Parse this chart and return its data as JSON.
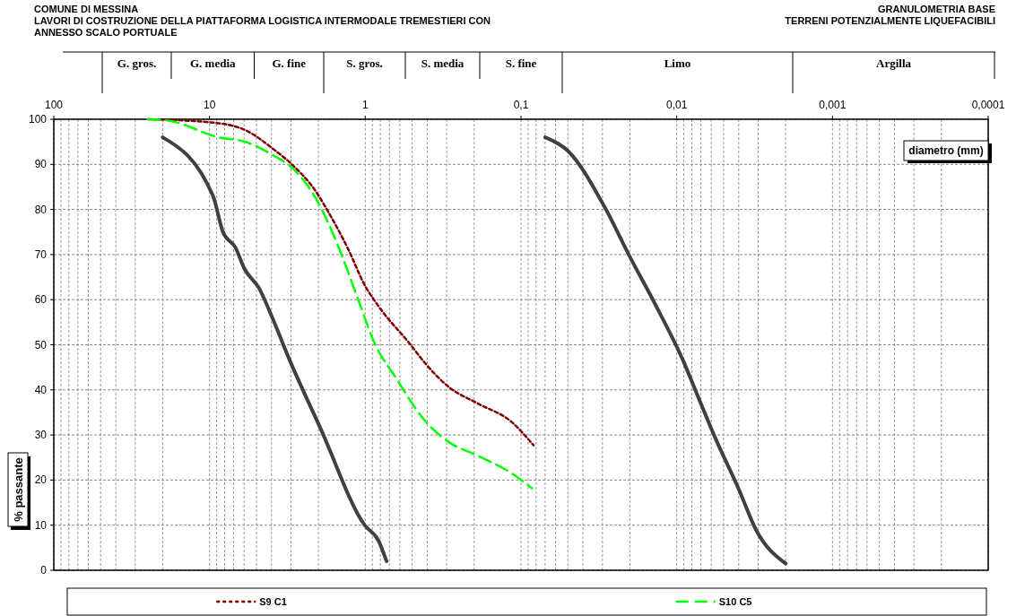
{
  "chart_data": {
    "type": "line",
    "title": "COMUNE DI MESSINA",
    "subtitle": "LAVORI DI COSTRUZIONE DELLA PIATTAFORMA LOGISTICA INTERMODALE TREMESTIERI CON ANNESSO SCALO PORTUALE",
    "annotations": [
      "GRANULOMETRIA BASE",
      "TERRENI POTENZIALMENTE LIQUEFACIBILI",
      "G. gros.",
      "G. media",
      "G. fine",
      "S. gros.",
      "S. media",
      "S. fine",
      "Limo",
      "Argilla"
    ],
    "xlabel": "diametro (mm)",
    "ylabel": "% passante",
    "log": "x",
    "grid": true,
    "legend": "bottom",
    "xlim": [
      100,
      0.0001
    ],
    "xticks": [
      100,
      10,
      1,
      {
        "value": 0.1,
        "label": "0,1"
      },
      {
        "value": 0.01,
        "label": "0,01"
      },
      {
        "value": 0.001,
        "label": "0,001"
      },
      {
        "value": 0.0001,
        "label": "0,0001"
      }
    ],
    "ylim": [
      0,
      100
    ],
    "yticks": [
      0,
      10,
      20,
      30,
      40,
      50,
      60,
      70,
      80,
      90,
      100
    ],
    "series": [
      {
        "color": "#404040",
        "line_style": "solid",
        "x": [
          20,
          9.5,
          8.2,
          6.8,
          6,
          4.8,
          3.9,
          3.05,
          1.94,
          1.01,
          0.82,
          0.73
        ],
        "values": [
          96,
          83,
          75,
          71.5,
          67,
          62.5,
          55.5,
          46.5,
          31.5,
          10,
          6.5,
          2
        ]
      },
      {
        "color": "#404040",
        "line_style": "solid",
        "x": [
          0.07,
          0.05,
          0.029,
          0.02,
          0.014,
          0.0091,
          0.0072,
          0.0056,
          0.004,
          0.0031,
          0.002
        ],
        "values": [
          96,
          93,
          80.5,
          69.5,
          59.5,
          46.5,
          38,
          29,
          18,
          9,
          1.5
        ]
      },
      {
        "name": "S9 C1",
        "color": "#800000",
        "line_style": "dotted",
        "x": [
          25,
          9.8,
          5.9,
          3.9,
          3.05,
          2.04,
          1.75,
          1.3,
          1,
          0.82,
          0.52,
          0.41,
          0.29,
          0.19,
          0.116,
          0.083
        ],
        "values": [
          100,
          99.3,
          97.6,
          93.4,
          90.4,
          83.6,
          79.8,
          71.5,
          63,
          58.5,
          50.3,
          45.8,
          40.6,
          37,
          33,
          27.7
        ]
      },
      {
        "name": "S10 C5",
        "color": "#00ff00",
        "line_style": "dashed",
        "x": [
          25,
          17.8,
          8.8,
          5.9,
          3.9,
          2.9,
          2.04,
          1.51,
          1.11,
          0.87,
          0.64,
          0.41,
          0.29,
          0.19,
          0.116,
          0.085
        ],
        "values": [
          100,
          99.6,
          96,
          95,
          92,
          89,
          82,
          72.3,
          60,
          50.3,
          42.8,
          33,
          28.4,
          25.4,
          21.6,
          18.2
        ]
      }
    ]
  }
}
